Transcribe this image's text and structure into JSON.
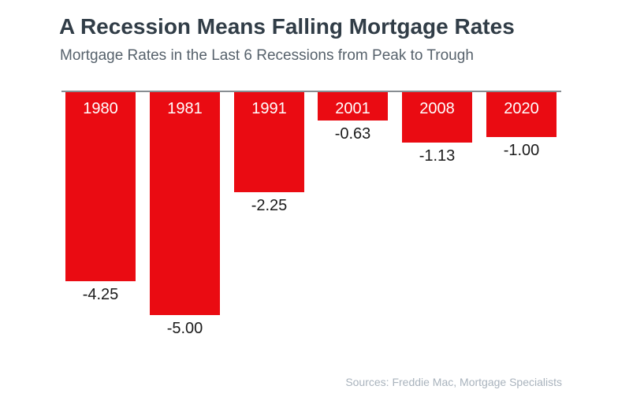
{
  "chart_data": {
    "type": "bar",
    "title": "A Recession Means Falling Mortgage Rates",
    "subtitle": "Mortgage Rates in the Last 6 Recessions from Peak to Trough",
    "categories": [
      "1980",
      "1981",
      "1991",
      "2001",
      "2008",
      "2020"
    ],
    "values": [
      -4.25,
      -5.0,
      -2.25,
      -0.63,
      -1.13,
      -1.0
    ],
    "value_labels": [
      "-4.25",
      "-5.00",
      "-2.25",
      "-0.63",
      "-1.13",
      "-1.00"
    ],
    "ylim": [
      -5.5,
      0
    ],
    "xlabel": "",
    "ylabel": "",
    "grid": false,
    "legend": false,
    "orientation": "columns-hanging-below-baseline",
    "bar_color": "#EA0B12",
    "baseline_color": "#878D92",
    "source_note": "Sources: Freddie Mac, Mortgage Specialists"
  },
  "colors": {
    "background": "#FFFFFF",
    "title": "#313D47",
    "subtitle": "#57626C",
    "bar": "#EA0B12",
    "year_label": "#FFFFFF",
    "value_label": "#1A1A1A",
    "baseline": "#878D92",
    "source": "#A9B3BD"
  }
}
